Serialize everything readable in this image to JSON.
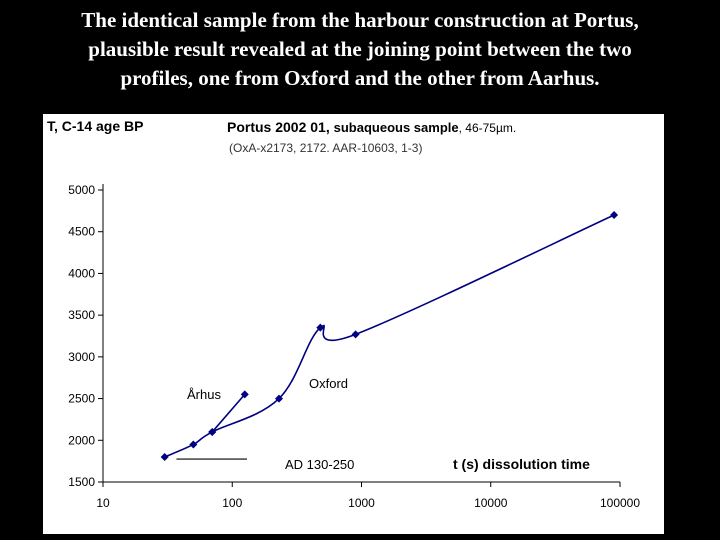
{
  "title_lines": [
    "The identical sample from the harbour construction at Portus,",
    "plausible result revealed at the joining point between the two",
    "profiles, one from Oxford and the other from Aarhus."
  ],
  "chart_data": {
    "type": "line",
    "ylabel": "T, C-14 age BP",
    "xlabel": "t (s) dissolution time",
    "title_main": "Portus 2002 01,",
    "title_mid": "subaqueous sample",
    "title_end": ", 46-75µm.",
    "subtitle": "(OxA-x2173, 2172. AAR-10603, 1-3)",
    "x_scale": "log",
    "xlim": [
      10,
      100000
    ],
    "ylim": [
      1500,
      5000
    ],
    "x_ticks": [
      "10",
      "100",
      "1000",
      "10000",
      "100000"
    ],
    "y_ticks": [
      "1500",
      "2000",
      "2500",
      "3000",
      "3500",
      "4000",
      "4500",
      "5000"
    ],
    "grid": false,
    "series": [
      {
        "name": "Oxford",
        "x": [
          30,
          50,
          70,
          230,
          480,
          900,
          90000
        ],
        "y": [
          1800,
          1950,
          2100,
          2500,
          3350,
          3270,
          4700
        ],
        "color": "#000080"
      },
      {
        "name": "Århus",
        "x": [
          70,
          125
        ],
        "y": [
          2100,
          2550
        ],
        "color": "#000080"
      }
    ],
    "reference_line": {
      "label": "AD 130-250",
      "x": [
        37,
        130
      ],
      "y": 1775
    }
  }
}
